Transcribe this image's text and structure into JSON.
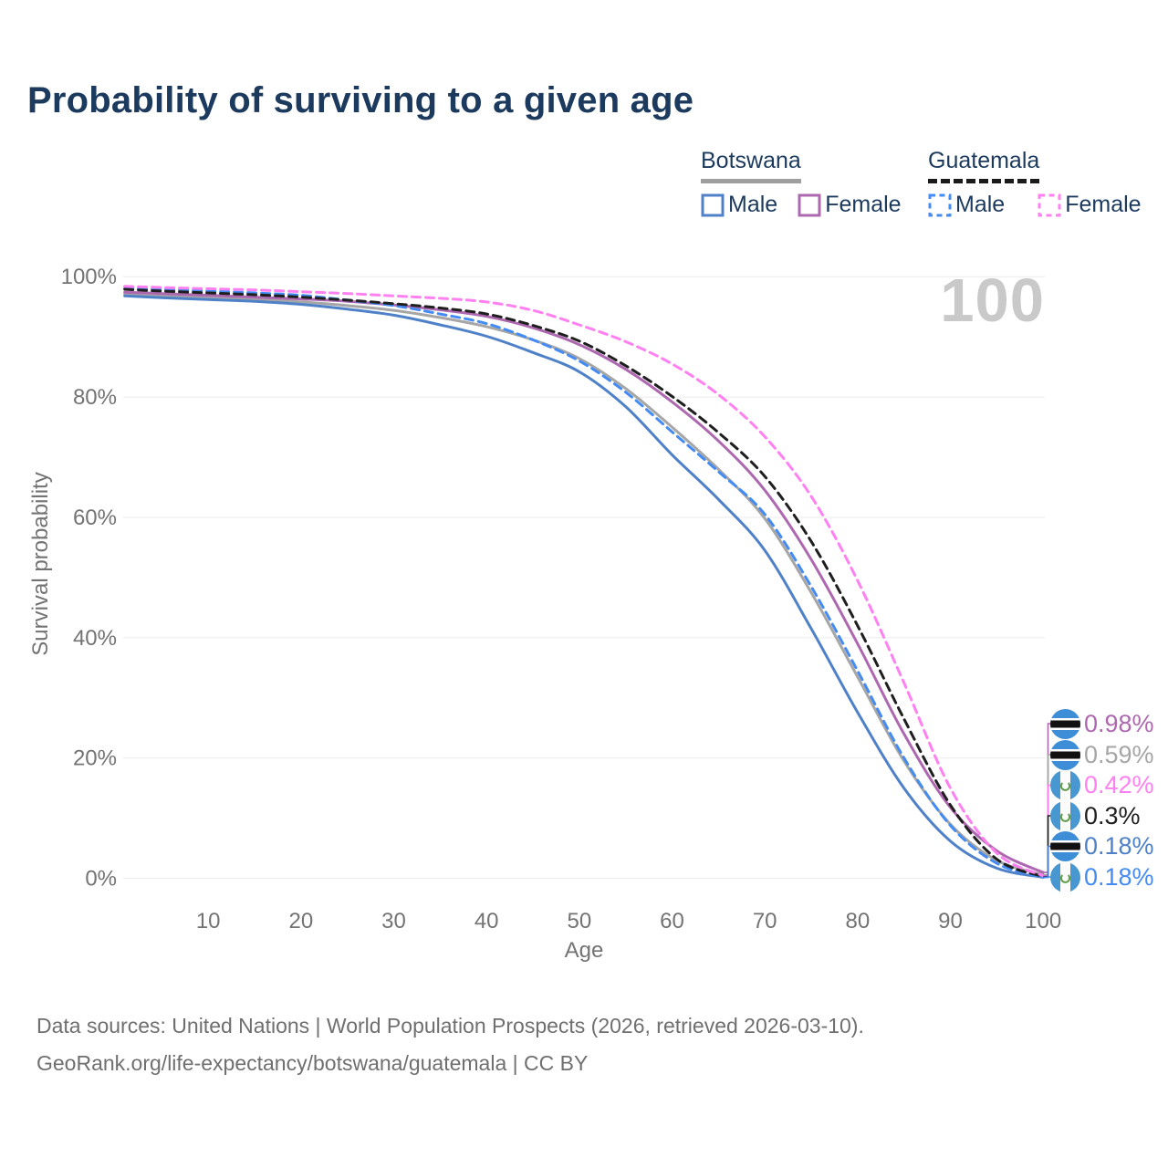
{
  "title": "Probability of surviving to a given age",
  "watermark": "100",
  "legend": {
    "groups": [
      {
        "name": "Botswana",
        "line_style": "solid",
        "underline_color": "#9e9e9e",
        "items": [
          {
            "label": "Male",
            "color": "#4f81c9"
          },
          {
            "label": "Female",
            "color": "#ad68b0"
          }
        ]
      },
      {
        "name": "Guatemala",
        "line_style": "dashed",
        "underline_color": "#1a1a1a",
        "items": [
          {
            "label": "Male",
            "color": "#448bf4"
          },
          {
            "label": "Female",
            "color": "#ff80f0"
          }
        ]
      }
    ]
  },
  "footer": {
    "line1": "Data sources: United Nations | World Population Prospects (2026, retrieved 2026-03-10).",
    "line2": "GeoRank.org/life-expectancy/botswana/guatemala | CC BY"
  },
  "colors": {
    "title_text": "#1c3a5e",
    "axis_text": "#737373",
    "gridline": "#ebebeb",
    "watermark": "#c9c9c9",
    "botswana_flag_blue": "#3d8ed7",
    "guatemala_flag_blue": "#4997d0"
  },
  "chart_data": {
    "type": "line",
    "title": "Probability of surviving to a given age",
    "xlabel": "Age",
    "ylabel": "Survival probability",
    "xlim": [
      0,
      100
    ],
    "ylim": [
      0,
      100
    ],
    "grid": "horizontal",
    "legend_position": "top-right",
    "x_ticks": [
      10,
      20,
      30,
      40,
      50,
      60,
      70,
      80,
      90,
      100
    ],
    "y_gridlines": [
      0,
      20,
      40,
      60,
      80,
      100
    ],
    "y_ticks": [
      "0%",
      "20%",
      "40%",
      "60%",
      "80%",
      "100%"
    ],
    "ages": [
      1,
      5,
      10,
      15,
      20,
      25,
      30,
      35,
      40,
      45,
      50,
      55,
      60,
      65,
      70,
      75,
      80,
      85,
      90,
      95,
      100
    ],
    "series": [
      {
        "id": "botswana-total",
        "name": "Botswana Both sexes",
        "country": "Botswana",
        "sex": "Both",
        "style": "solid",
        "color": "#a6a6a6",
        "values": [
          97.1,
          96.8,
          96.5,
          96.2,
          95.8,
          95.2,
          94.4,
          93.2,
          91.7,
          89.5,
          86.4,
          81.4,
          75.0,
          68.0,
          59.8,
          47.5,
          33.5,
          19.5,
          9.0,
          3.0,
          0.59
        ]
      },
      {
        "id": "botswana-female",
        "name": "Botswana Female",
        "country": "Botswana",
        "sex": "Female",
        "style": "solid",
        "color": "#ad68b0",
        "values": [
          97.4,
          97.2,
          96.9,
          96.6,
          96.3,
          95.9,
          95.3,
          94.5,
          93.4,
          91.5,
          88.7,
          84.6,
          79.2,
          72.7,
          64.5,
          53.0,
          39.0,
          24.0,
          11.8,
          4.6,
          0.98
        ]
      },
      {
        "id": "botswana-male",
        "name": "Botswana Male",
        "country": "Botswana",
        "sex": "Male",
        "style": "solid",
        "color": "#4f81c9",
        "values": [
          96.8,
          96.5,
          96.2,
          95.9,
          95.4,
          94.6,
          93.6,
          92.0,
          90.1,
          87.4,
          84.2,
          78.4,
          70.4,
          63.0,
          54.5,
          41.5,
          27.6,
          15.0,
          6.2,
          1.7,
          0.18
        ]
      },
      {
        "id": "guatemala-male",
        "name": "Guatemala Male",
        "country": "Guatemala",
        "sex": "Male",
        "style": "dashed",
        "color": "#448bf4",
        "values": [
          98.1,
          97.9,
          97.6,
          97.3,
          96.9,
          96.1,
          95.2,
          93.8,
          92.2,
          89.5,
          86.0,
          80.8,
          74.2,
          67.6,
          60.5,
          48.5,
          34.5,
          20.0,
          8.8,
          2.5,
          0.18
        ]
      },
      {
        "id": "guatemala-total",
        "name": "Guatemala Both sexes",
        "country": "Guatemala",
        "sex": "Both",
        "style": "dashed",
        "color": "#1f1f1f",
        "values": [
          97.9,
          97.6,
          97.3,
          97.0,
          96.6,
          96.1,
          95.5,
          94.8,
          93.8,
          91.9,
          89.3,
          85.2,
          80.1,
          74.1,
          66.8,
          56.0,
          42.0,
          26.5,
          12.2,
          3.2,
          0.3
        ]
      },
      {
        "id": "guatemala-female",
        "name": "Guatemala Female",
        "country": "Guatemala",
        "sex": "Female",
        "style": "dashed",
        "color": "#ff80f0",
        "values": [
          98.4,
          98.2,
          98.0,
          97.8,
          97.5,
          97.2,
          96.8,
          96.4,
          95.8,
          94.4,
          92.0,
          89.2,
          85.5,
          80.4,
          73.4,
          63.5,
          49.5,
          32.5,
          15.0,
          4.2,
          0.42
        ]
      }
    ],
    "end_labels": [
      {
        "label": "0.98%",
        "series": "botswana-female",
        "color": "#ad68b0",
        "flag": "botswana-flag-icon"
      },
      {
        "label": "0.59%",
        "series": "botswana-total",
        "color": "#a6a6a6",
        "flag": "botswana-flag-icon"
      },
      {
        "label": "0.42%",
        "series": "guatemala-female",
        "color": "#ff80f0",
        "flag": "guatemala-flag-icon"
      },
      {
        "label": "0.3%",
        "series": "guatemala-total",
        "color": "#1f1f1f",
        "flag": "guatemala-flag-icon"
      },
      {
        "label": "0.18%",
        "series": "botswana-male",
        "color": "#4f81c9",
        "flag": "botswana-flag-icon"
      },
      {
        "label": "0.18%",
        "series": "guatemala-male",
        "color": "#448bf4",
        "flag": "guatemala-flag-icon"
      }
    ]
  }
}
